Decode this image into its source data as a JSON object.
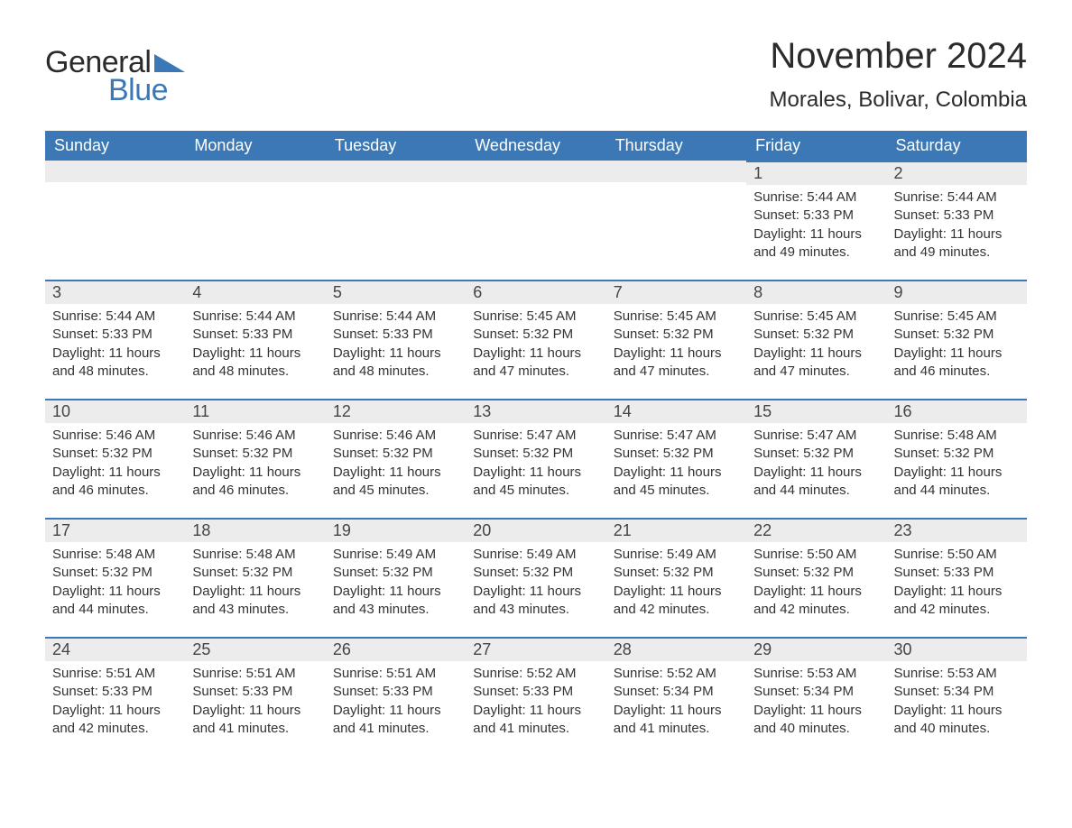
{
  "brand": {
    "word1": "General",
    "word2": "Blue",
    "accent_color": "#3b78b5",
    "text_color": "#2b2b2b"
  },
  "title": "November 2024",
  "location": "Morales, Bolivar, Colombia",
  "colors": {
    "header_bg": "#3b78b5",
    "header_text": "#ffffff",
    "daynum_bg": "#ececec",
    "border_top": "#3b78b5",
    "body_text": "#333333",
    "page_bg": "#ffffff"
  },
  "fonts": {
    "title_size_pt": 40,
    "location_size_pt": 24,
    "header_size_pt": 18,
    "daynum_size_pt": 18,
    "body_size_pt": 15
  },
  "weekdays": [
    "Sunday",
    "Monday",
    "Tuesday",
    "Wednesday",
    "Thursday",
    "Friday",
    "Saturday"
  ],
  "weeks": [
    [
      null,
      null,
      null,
      null,
      null,
      {
        "n": "1",
        "sunrise": "Sunrise: 5:44 AM",
        "sunset": "Sunset: 5:33 PM",
        "daylight": "Daylight: 11 hours and 49 minutes."
      },
      {
        "n": "2",
        "sunrise": "Sunrise: 5:44 AM",
        "sunset": "Sunset: 5:33 PM",
        "daylight": "Daylight: 11 hours and 49 minutes."
      }
    ],
    [
      {
        "n": "3",
        "sunrise": "Sunrise: 5:44 AM",
        "sunset": "Sunset: 5:33 PM",
        "daylight": "Daylight: 11 hours and 48 minutes."
      },
      {
        "n": "4",
        "sunrise": "Sunrise: 5:44 AM",
        "sunset": "Sunset: 5:33 PM",
        "daylight": "Daylight: 11 hours and 48 minutes."
      },
      {
        "n": "5",
        "sunrise": "Sunrise: 5:44 AM",
        "sunset": "Sunset: 5:33 PM",
        "daylight": "Daylight: 11 hours and 48 minutes."
      },
      {
        "n": "6",
        "sunrise": "Sunrise: 5:45 AM",
        "sunset": "Sunset: 5:32 PM",
        "daylight": "Daylight: 11 hours and 47 minutes."
      },
      {
        "n": "7",
        "sunrise": "Sunrise: 5:45 AM",
        "sunset": "Sunset: 5:32 PM",
        "daylight": "Daylight: 11 hours and 47 minutes."
      },
      {
        "n": "8",
        "sunrise": "Sunrise: 5:45 AM",
        "sunset": "Sunset: 5:32 PM",
        "daylight": "Daylight: 11 hours and 47 minutes."
      },
      {
        "n": "9",
        "sunrise": "Sunrise: 5:45 AM",
        "sunset": "Sunset: 5:32 PM",
        "daylight": "Daylight: 11 hours and 46 minutes."
      }
    ],
    [
      {
        "n": "10",
        "sunrise": "Sunrise: 5:46 AM",
        "sunset": "Sunset: 5:32 PM",
        "daylight": "Daylight: 11 hours and 46 minutes."
      },
      {
        "n": "11",
        "sunrise": "Sunrise: 5:46 AM",
        "sunset": "Sunset: 5:32 PM",
        "daylight": "Daylight: 11 hours and 46 minutes."
      },
      {
        "n": "12",
        "sunrise": "Sunrise: 5:46 AM",
        "sunset": "Sunset: 5:32 PM",
        "daylight": "Daylight: 11 hours and 45 minutes."
      },
      {
        "n": "13",
        "sunrise": "Sunrise: 5:47 AM",
        "sunset": "Sunset: 5:32 PM",
        "daylight": "Daylight: 11 hours and 45 minutes."
      },
      {
        "n": "14",
        "sunrise": "Sunrise: 5:47 AM",
        "sunset": "Sunset: 5:32 PM",
        "daylight": "Daylight: 11 hours and 45 minutes."
      },
      {
        "n": "15",
        "sunrise": "Sunrise: 5:47 AM",
        "sunset": "Sunset: 5:32 PM",
        "daylight": "Daylight: 11 hours and 44 minutes."
      },
      {
        "n": "16",
        "sunrise": "Sunrise: 5:48 AM",
        "sunset": "Sunset: 5:32 PM",
        "daylight": "Daylight: 11 hours and 44 minutes."
      }
    ],
    [
      {
        "n": "17",
        "sunrise": "Sunrise: 5:48 AM",
        "sunset": "Sunset: 5:32 PM",
        "daylight": "Daylight: 11 hours and 44 minutes."
      },
      {
        "n": "18",
        "sunrise": "Sunrise: 5:48 AM",
        "sunset": "Sunset: 5:32 PM",
        "daylight": "Daylight: 11 hours and 43 minutes."
      },
      {
        "n": "19",
        "sunrise": "Sunrise: 5:49 AM",
        "sunset": "Sunset: 5:32 PM",
        "daylight": "Daylight: 11 hours and 43 minutes."
      },
      {
        "n": "20",
        "sunrise": "Sunrise: 5:49 AM",
        "sunset": "Sunset: 5:32 PM",
        "daylight": "Daylight: 11 hours and 43 minutes."
      },
      {
        "n": "21",
        "sunrise": "Sunrise: 5:49 AM",
        "sunset": "Sunset: 5:32 PM",
        "daylight": "Daylight: 11 hours and 42 minutes."
      },
      {
        "n": "22",
        "sunrise": "Sunrise: 5:50 AM",
        "sunset": "Sunset: 5:32 PM",
        "daylight": "Daylight: 11 hours and 42 minutes."
      },
      {
        "n": "23",
        "sunrise": "Sunrise: 5:50 AM",
        "sunset": "Sunset: 5:33 PM",
        "daylight": "Daylight: 11 hours and 42 minutes."
      }
    ],
    [
      {
        "n": "24",
        "sunrise": "Sunrise: 5:51 AM",
        "sunset": "Sunset: 5:33 PM",
        "daylight": "Daylight: 11 hours and 42 minutes."
      },
      {
        "n": "25",
        "sunrise": "Sunrise: 5:51 AM",
        "sunset": "Sunset: 5:33 PM",
        "daylight": "Daylight: 11 hours and 41 minutes."
      },
      {
        "n": "26",
        "sunrise": "Sunrise: 5:51 AM",
        "sunset": "Sunset: 5:33 PM",
        "daylight": "Daylight: 11 hours and 41 minutes."
      },
      {
        "n": "27",
        "sunrise": "Sunrise: 5:52 AM",
        "sunset": "Sunset: 5:33 PM",
        "daylight": "Daylight: 11 hours and 41 minutes."
      },
      {
        "n": "28",
        "sunrise": "Sunrise: 5:52 AM",
        "sunset": "Sunset: 5:34 PM",
        "daylight": "Daylight: 11 hours and 41 minutes."
      },
      {
        "n": "29",
        "sunrise": "Sunrise: 5:53 AM",
        "sunset": "Sunset: 5:34 PM",
        "daylight": "Daylight: 11 hours and 40 minutes."
      },
      {
        "n": "30",
        "sunrise": "Sunrise: 5:53 AM",
        "sunset": "Sunset: 5:34 PM",
        "daylight": "Daylight: 11 hours and 40 minutes."
      }
    ]
  ]
}
